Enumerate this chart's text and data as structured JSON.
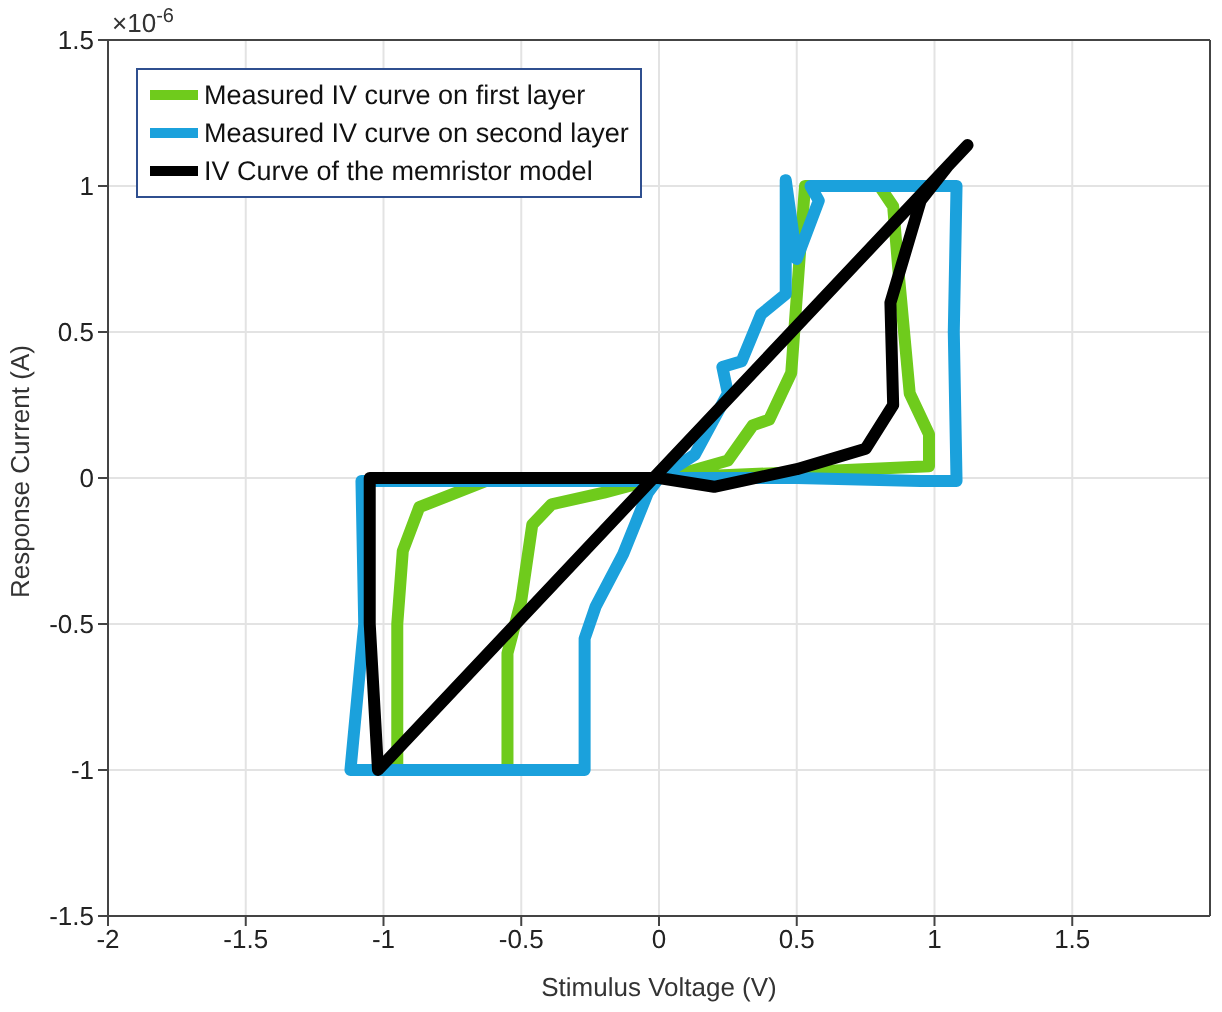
{
  "chart_data": {
    "type": "line",
    "xlabel": "Stimulus Voltage (V)",
    "ylabel": "Response Current (A)",
    "annotations": [
      "×10$^{-6}$"
    ],
    "xlim": [
      -2,
      2
    ],
    "xticks": [
      -2,
      -1.5,
      -1,
      -0.5,
      0,
      0.5,
      1,
      1.5
    ],
    "ylim": [
      -1.5,
      1.5
    ],
    "yticks": [
      -1.5,
      -1,
      -0.5,
      0,
      0.5,
      1,
      1.5
    ],
    "grid": true,
    "legend": "top left",
    "marker": "none",
    "line_style": "solid",
    "series": [
      {
        "name": "Measured IV curve on first layer",
        "color": "#6fcb1c",
        "x": [
          0,
          0.5,
          0.98,
          0.98,
          0.91,
          0.87,
          0.85,
          0.8,
          0.53,
          0.51,
          0.48,
          0.4,
          0.34,
          0.25,
          0.1,
          0,
          -0.2,
          -0.39,
          -0.46,
          -0.5,
          -0.55,
          -0.55,
          -0.95,
          -0.95,
          -0.93,
          -0.87,
          -0.6,
          -0.3,
          -0.03
        ],
        "values": [
          0,
          0.02,
          0.04,
          0.15,
          0.29,
          0.7,
          0.93,
          1.0,
          1.0,
          0.75,
          0.36,
          0.2,
          0.18,
          0.06,
          0.02,
          0,
          -0.05,
          -0.09,
          -0.16,
          -0.42,
          -0.6,
          -1.0,
          -1.0,
          -0.5,
          -0.25,
          -0.1,
          0,
          0,
          0
        ]
      },
      {
        "name": "Measured IV curve on second layer",
        "color": "#1ba1dc",
        "x": [
          0,
          0.5,
          0.95,
          1.08,
          1.07,
          1.08,
          0.9,
          0.55,
          0.58,
          0.5,
          0.46,
          0.46,
          0.37,
          0.3,
          0.23,
          0.25,
          0.13,
          0,
          -0.04,
          -0.13,
          -0.23,
          -0.27,
          -0.27,
          -0.7,
          -1.12,
          -1.07,
          -1.08,
          -0.6,
          -0.2,
          -0.03
        ],
        "values": [
          0,
          0,
          -0.01,
          -0.01,
          0.5,
          1.0,
          1.0,
          1.0,
          0.95,
          0.75,
          1.02,
          0.63,
          0.56,
          0.4,
          0.38,
          0.29,
          0.08,
          0,
          -0.05,
          -0.26,
          -0.44,
          -0.55,
          -1.0,
          -1.0,
          -1.0,
          -0.5,
          -0.01,
          -0.01,
          -0.01,
          -0.01
        ]
      },
      {
        "name": "IV Curve of the memristor model",
        "color": "#000000",
        "x": [
          1.12,
          -1.02,
          -1.05,
          -1.05,
          -0.5,
          0,
          0.2,
          0.5,
          0.75,
          0.85,
          0.84,
          0.95,
          1.05
        ],
        "values": [
          1.14,
          -1.0,
          -0.5,
          0,
          0,
          0,
          -0.03,
          0.03,
          0.1,
          0.25,
          0.6,
          0.95,
          1.07
        ]
      }
    ]
  }
}
